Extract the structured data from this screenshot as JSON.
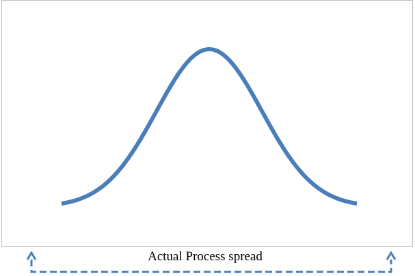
{
  "diagram": {
    "spread_label": "Actual Process spread",
    "colors": {
      "curve": "#4a7ebb",
      "arrow": "#4a7ebb",
      "frame": "#bfbfbf",
      "text": "#000000"
    },
    "icons": {
      "left_arrow": "arrow-up-icon",
      "right_arrow": "arrow-up-icon"
    }
  }
}
